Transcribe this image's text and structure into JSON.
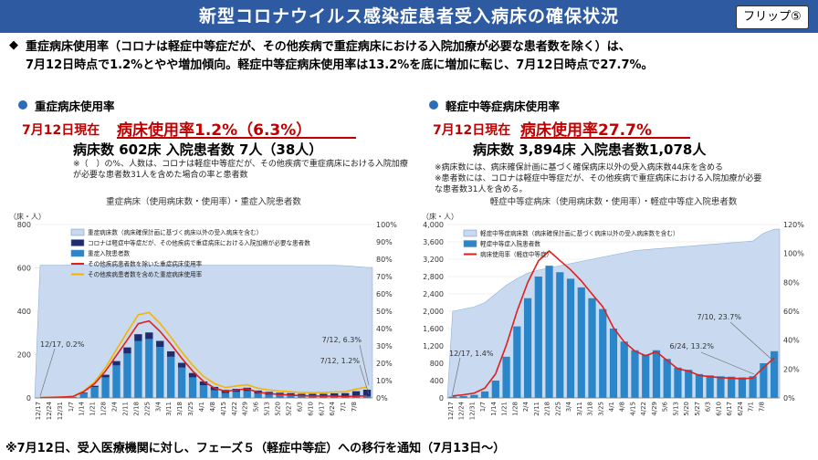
{
  "header": {
    "title": "新型コロナウイルス感染症患者受入病床の確保状況",
    "flip_label": "フリップ⑤"
  },
  "summary": {
    "bullet": "◆",
    "line1": "重症病床使用率（コロナは軽症中等症だが、その他疾病で重症病床における入院加療が必要な患者数を除く）は、",
    "line2": "7月12日時点で1.2%とやや増加傾向。軽症中等症病床使用率は13.2%を底に増加に転じ、7月12日時点で27.7%。"
  },
  "left_panel": {
    "section_title": "重症病床使用率",
    "date_label": "7月12日現在",
    "rate_label": "病床使用率1.2%（6.3%）",
    "beds_label": "病床数 602床 入院患者数 7人（38人）",
    "note_line1": "※（　）の%、人数は、コロナは軽症中等症だが、その他疾病で重症病床における入院加療",
    "note_line2": "が必要な患者数31人を含めた場合の率と患者数"
  },
  "right_panel": {
    "section_title": "軽症中等症病床使用率",
    "date_label": "7月12日現在",
    "rate_label": "病床使用率27.7%",
    "beds_label": "病床数 3,894床 入院患者数1,078人",
    "note_line1": "※病床数には、病床確保計画に基づく確保病床以外の受入病床数44床を含める",
    "note_line2": "※患者数には、コロナは軽症中等症だが、その他疾病で重症病床における入院加療が必要",
    "note_line3": "な患者数31人を含める。"
  },
  "footer": "※7月12日、受入医療機関に対し、フェーズ５（軽症中等症）への移行を通知（7月13日～）",
  "colors": {
    "header_bg": "#2d5aa0",
    "bed_area": "#c9d9ef",
    "bar_navy": "#1f2c6e",
    "bar_blue": "#2a86c9",
    "line_red": "#e0201b",
    "line_orange": "#f5b400"
  },
  "chart_data": [
    {
      "type": "bar",
      "title": "重症病床（使用病床数・使用率）・重症入院患者数",
      "y_unit_label": "（床・人）",
      "ylim": [
        0,
        800
      ],
      "y2lim": [
        0,
        100
      ],
      "y_ticks": [
        "0",
        "200",
        "400",
        "600",
        "800"
      ],
      "y2_ticks": [
        "0%",
        "10%",
        "20%",
        "30%",
        "40%",
        "50%",
        "60%",
        "70%",
        "80%",
        "90%",
        "100%"
      ],
      "x_ticks": [
        "12/17",
        "12/24",
        "12/31",
        "1/7",
        "1/14",
        "1/21",
        "1/28",
        "2/4",
        "2/11",
        "2/18",
        "2/25",
        "3/4",
        "3/11",
        "3/18",
        "3/25",
        "4/1",
        "4/8",
        "4/15",
        "4/22",
        "4/29",
        "5/6",
        "5/13",
        "5/20",
        "5/27",
        "6/3",
        "6/10",
        "6/17",
        "6/24",
        "7/1",
        "7/8"
      ],
      "legend": [
        "重症病床数（病床確保計画に基づく病床以外の受入病床を含む）",
        "コロナは軽症中等症だが、その他疾病で重症病床における入院加療が必要な患者数",
        "重症入院患者数",
        "その他疾病患者数を除いた重症病床使用率",
        "その他疾病患者数を含めた重症病床使用率"
      ],
      "annotations": [
        "12/17, 0.2%",
        "7/12, 6.3%",
        "7/12, 1.2%"
      ],
      "x": [
        "12/17",
        "12/24",
        "12/31",
        "1/7",
        "1/14",
        "1/21",
        "1/28",
        "2/4",
        "2/11",
        "2/18",
        "2/25",
        "3/4",
        "3/11",
        "3/18",
        "3/25",
        "4/1",
        "4/8",
        "4/15",
        "4/22",
        "4/29",
        "5/6",
        "5/13",
        "5/20",
        "5/27",
        "6/3",
        "6/10",
        "6/17",
        "6/24",
        "7/1",
        "7/8",
        "7/12"
      ],
      "series": [
        {
          "name": "重症病床数（病床確保計画に基づく病床以外の受入病床を含む）",
          "values": [
            612,
            612,
            612,
            612,
            612,
            612,
            612,
            612,
            612,
            612,
            612,
            612,
            612,
            612,
            612,
            612,
            612,
            612,
            612,
            612,
            612,
            612,
            612,
            612,
            612,
            612,
            612,
            612,
            610,
            606,
            602
          ]
        },
        {
          "name": "重症入院患者数",
          "values": [
            1,
            2,
            3,
            5,
            22,
            50,
            95,
            150,
            205,
            262,
            272,
            235,
            190,
            140,
            95,
            58,
            35,
            23,
            28,
            32,
            20,
            15,
            12,
            10,
            8,
            7,
            6,
            6,
            5,
            6,
            7
          ]
        },
        {
          "name": "コロナは軽症中等症だが、その他疾病で重症病床における入院加療が必要な患者数",
          "values": [
            0,
            0,
            0,
            0,
            3,
            6,
            12,
            20,
            28,
            32,
            30,
            28,
            25,
            22,
            20,
            18,
            16,
            14,
            14,
            15,
            14,
            13,
            12,
            12,
            11,
            12,
            13,
            15,
            17,
            25,
            31
          ]
        },
        {
          "name": "その他疾病患者数を除いた重症病床使用率",
          "values": [
            0.2,
            0.3,
            0.5,
            0.8,
            3.6,
            8.2,
            15.5,
            24.5,
            33.5,
            42.8,
            44.4,
            38.4,
            31.0,
            22.9,
            15.5,
            9.5,
            5.7,
            3.8,
            4.6,
            5.2,
            3.3,
            2.5,
            2.0,
            1.6,
            1.3,
            1.1,
            1.0,
            1.0,
            0.8,
            1.0,
            1.2
          ]
        },
        {
          "name": "その他疾病患者数を含めた重症病床使用率",
          "values": [
            0.2,
            0.3,
            0.5,
            0.8,
            4.1,
            9.2,
            17.5,
            27.8,
            38.1,
            48.0,
            49.3,
            43.0,
            35.1,
            26.5,
            18.8,
            12.4,
            8.3,
            6.0,
            6.9,
            7.6,
            5.6,
            4.6,
            4.0,
            3.6,
            3.1,
            3.1,
            3.1,
            3.4,
            3.6,
            5.1,
            6.3
          ]
        }
      ]
    },
    {
      "type": "bar",
      "title": "軽症中等症病床（使用病床数・使用率）・軽症中等症入院患者数",
      "y_unit_label": "（床・人）",
      "ylim": [
        0,
        4000
      ],
      "y2lim": [
        0,
        120
      ],
      "y_ticks": [
        "0",
        "400",
        "800",
        "1,200",
        "1,600",
        "2,000",
        "2,400",
        "2,800",
        "3,200",
        "3,600",
        "4,000"
      ],
      "y2_ticks": [
        "0%",
        "20%",
        "40%",
        "60%",
        "80%",
        "100%",
        "120%"
      ],
      "x_ticks": [
        "12/17",
        "12/24",
        "12/31",
        "1/7",
        "1/14",
        "1/21",
        "1/28",
        "2/4",
        "2/11",
        "2/18",
        "2/25",
        "3/4",
        "3/11",
        "3/18",
        "3/25",
        "4/1",
        "4/8",
        "4/15",
        "4/22",
        "4/29",
        "5/6",
        "5/13",
        "5/20",
        "5/27",
        "6/3",
        "6/10",
        "6/17",
        "6/24",
        "7/1",
        "7/8"
      ],
      "legend": [
        "軽症中等症病床数（病床確保計画に基づく病床以外の受入病床数を含む）",
        "軽症中等症入院患者数",
        "病床使用率（軽症中等症）"
      ],
      "annotations": [
        "12/17, 1.4%",
        "6/24, 13.2%",
        "7/10, 23.7%"
      ],
      "x": [
        "12/17",
        "12/24",
        "12/31",
        "1/7",
        "1/14",
        "1/21",
        "1/28",
        "2/4",
        "2/11",
        "2/18",
        "2/25",
        "3/4",
        "3/11",
        "3/18",
        "3/25",
        "4/1",
        "4/8",
        "4/15",
        "4/22",
        "4/29",
        "5/6",
        "5/13",
        "5/20",
        "5/27",
        "6/3",
        "6/10",
        "6/17",
        "6/24",
        "7/1",
        "7/8",
        "7/12"
      ],
      "series": [
        {
          "name": "軽症中等症病床数（病床確保計画に基づく病床以外の受入病床数を含む）",
          "values": [
            2000,
            2050,
            2100,
            2200,
            2400,
            2600,
            2750,
            2880,
            2950,
            3000,
            3050,
            3100,
            3150,
            3200,
            3250,
            3300,
            3350,
            3400,
            3420,
            3440,
            3460,
            3480,
            3500,
            3520,
            3540,
            3560,
            3580,
            3600,
            3620,
            3800,
            3894
          ]
        },
        {
          "name": "軽症中等症入院患者数",
          "values": [
            30,
            45,
            70,
            150,
            400,
            950,
            1650,
            2300,
            2800,
            3050,
            2900,
            2750,
            2550,
            2300,
            2050,
            1600,
            1300,
            1100,
            1000,
            1100,
            900,
            700,
            650,
            550,
            520,
            500,
            490,
            475,
            500,
            800,
            1078
          ]
        },
        {
          "name": "病床使用率（軽症中等症）",
          "values": [
            1.4,
            2.2,
            3.3,
            6.8,
            16.7,
            36.5,
            60.0,
            79.9,
            94.9,
            101.7,
            95.1,
            88.7,
            81.0,
            71.9,
            63.1,
            48.5,
            38.8,
            32.4,
            29.2,
            32.0,
            26.0,
            20.1,
            18.6,
            15.6,
            14.7,
            14.0,
            13.7,
            13.2,
            13.8,
            21.1,
            27.7
          ]
        }
      ]
    }
  ]
}
